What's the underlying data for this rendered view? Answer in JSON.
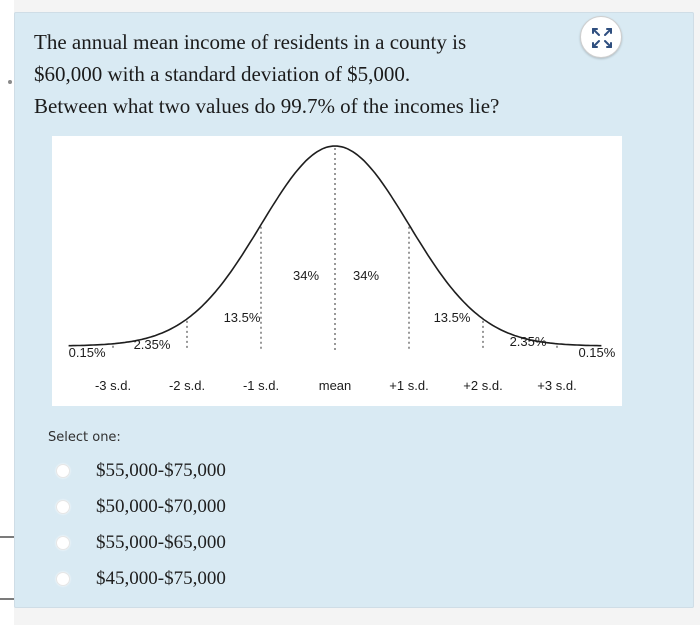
{
  "question": {
    "line1": "The annual mean income of residents in a county is",
    "line2": "$60,000 with a standard deviation of $5,000.",
    "line3": "Between what two values do 99.7% of the incomes lie?"
  },
  "expand_button": {
    "icon": "expand-arrows-icon"
  },
  "chart_data": {
    "type": "area",
    "title": "",
    "xlabel": "",
    "ylabel": "",
    "x_ticks": [
      "-3 s.d.",
      "-2 s.d.",
      "-1 s.d.",
      "mean",
      "+1 s.d.",
      "+2 s.d.",
      "+3 s.d."
    ],
    "regions": [
      {
        "from": "-inf",
        "to": -3,
        "percent": "0.15%"
      },
      {
        "from": -3,
        "to": -2,
        "percent": "2.35%"
      },
      {
        "from": -2,
        "to": -1,
        "percent": "13.5%"
      },
      {
        "from": -1,
        "to": 0,
        "percent": "34%"
      },
      {
        "from": 0,
        "to": 1,
        "percent": "34%"
      },
      {
        "from": 1,
        "to": 2,
        "percent": "13.5%"
      },
      {
        "from": 2,
        "to": 3,
        "percent": "2.35%"
      },
      {
        "from": 3,
        "to": "inf",
        "percent": "0.15%"
      }
    ],
    "xlim": [
      -3.6,
      3.6
    ],
    "curve": "standard normal density",
    "grid": false,
    "divider_style": "dashed"
  },
  "answers": {
    "prompt": "Select one:",
    "options": [
      "$55,000-$75,000",
      "$50,000-$70,000",
      "$55,000-$65,000",
      "$45,000-$75,000"
    ]
  }
}
